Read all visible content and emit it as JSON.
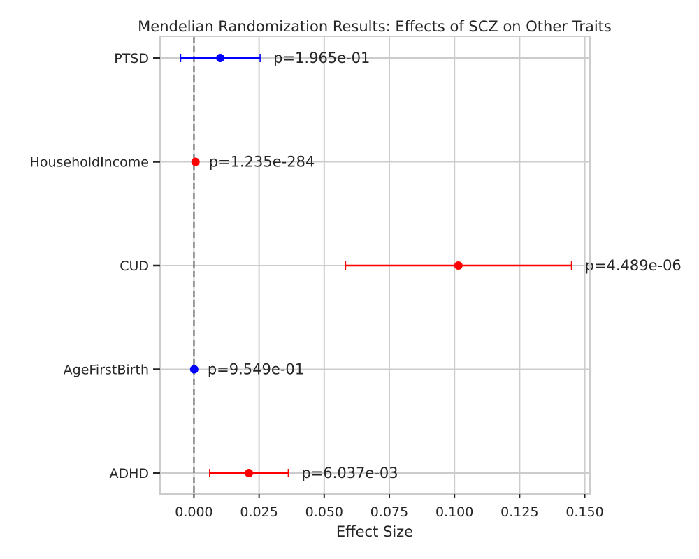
{
  "chart_data": {
    "type": "forest",
    "title": "Mendelian Randomization Results: Effects of SCZ on Other Traits",
    "xlabel": "Effect Size",
    "ylabel": "",
    "xlim": [
      -0.013,
      0.152
    ],
    "xticks": [
      0.0,
      0.025,
      0.05,
      0.075,
      0.1,
      0.125,
      0.15
    ],
    "xtick_labels": [
      "0.000",
      "0.025",
      "0.050",
      "0.075",
      "0.100",
      "0.125",
      "0.150"
    ],
    "grid": true,
    "reference_line": {
      "x": 0,
      "style": "dashed",
      "color": "#808080"
    },
    "colors": {
      "significant": "#ff0000",
      "not_significant": "#0000ff"
    },
    "traits": [
      {
        "name": "PTSD",
        "effect": 0.0101,
        "ci_low": -0.0051,
        "ci_high": 0.0254,
        "p_label": "p=1.965e-01",
        "color": "#0000ff"
      },
      {
        "name": "HouseholdIncome",
        "effect": 0.0006,
        "ci_low": 0.0006,
        "ci_high": 0.0006,
        "p_label": "p=1.235e-284",
        "color": "#ff0000"
      },
      {
        "name": "CUD",
        "effect": 0.1015,
        "ci_low": 0.0582,
        "ci_high": 0.1449,
        "p_label": "p=4.489e-06",
        "color": "#ff0000"
      },
      {
        "name": "AgeFirstBirth",
        "effect": 0.0001,
        "ci_low": 0.0001,
        "ci_high": 0.0001,
        "p_label": "p=9.549e-01",
        "color": "#0000ff"
      },
      {
        "name": "ADHD",
        "effect": 0.0211,
        "ci_low": 0.006,
        "ci_high": 0.0362,
        "p_label": "p=6.037e-03",
        "color": "#ff0000"
      }
    ]
  }
}
